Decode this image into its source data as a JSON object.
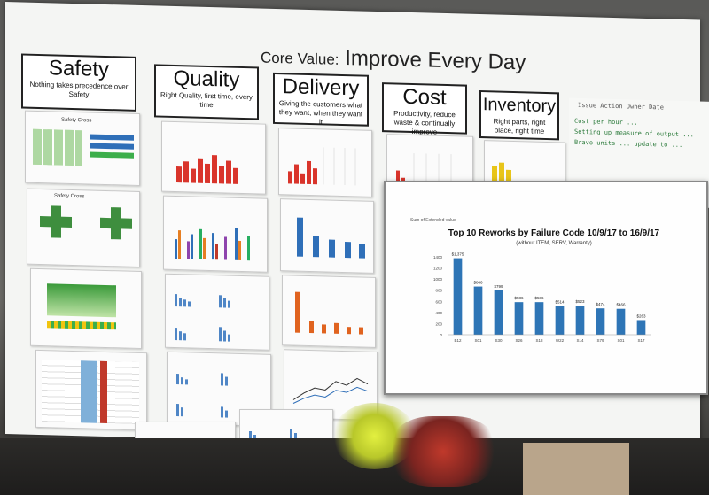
{
  "board": {
    "title_prefix": "Core Value:",
    "title_main": "Improve Every Day"
  },
  "categories": [
    {
      "key": "safety",
      "heading": "Safety",
      "subtitle": "Nothing takes precedence over Safety"
    },
    {
      "key": "quality",
      "heading": "Quality",
      "subtitle": "Right Quality, first time, every time"
    },
    {
      "key": "delivery",
      "heading": "Delivery",
      "subtitle": "Giving the customers what they want, when they want it"
    },
    {
      "key": "cost",
      "heading": "Cost",
      "subtitle": "Productivity, reduce waste & continually improve"
    },
    {
      "key": "inventory",
      "heading": "Inventory",
      "subtitle": "Right parts, right place, right time"
    }
  ],
  "sheets": {
    "safety_cross": "Safety Cross",
    "safety_cross_2": "Safety Cross"
  },
  "handwriting": {
    "header": "Issue  Action  Owner  Date",
    "lines": [
      "Cost per hour ... ",
      "Setting up measure of output ... ",
      "Bravo units ... update to ..."
    ]
  },
  "big_chart": {
    "sum_label": "Sum of Extended value",
    "title": "Top 10 Reworks by Failure Code 10/9/17 to 16/9/17",
    "subtitle": "(without ITEM, SERV, Warranty)",
    "color": "#2e75b6"
  },
  "chart_data": {
    "type": "bar",
    "title": "Top 10 Reworks by Failure Code 10/9/17 to 16/9/17",
    "subtitle": "(without ITEM, SERV, Warranty)",
    "ylabel": "Sum of Extended value",
    "categories": [
      "B12",
      "S01",
      "S30",
      "S26",
      "S18",
      "W22",
      "S14",
      "S79",
      "S01",
      "S17"
    ],
    "values": [
      1375,
      866,
      799,
      586,
      586,
      514,
      523,
      474,
      466,
      263
    ],
    "data_labels": [
      "$1,375",
      "$866",
      "$799",
      "$586",
      "$586",
      "$514",
      "$523",
      "$474",
      "$466",
      "$263"
    ],
    "ylim": [
      0,
      1400
    ],
    "yticks": [
      0,
      200,
      400,
      600,
      800,
      1000,
      1200,
      1400
    ],
    "grid": false,
    "legend": "none"
  }
}
